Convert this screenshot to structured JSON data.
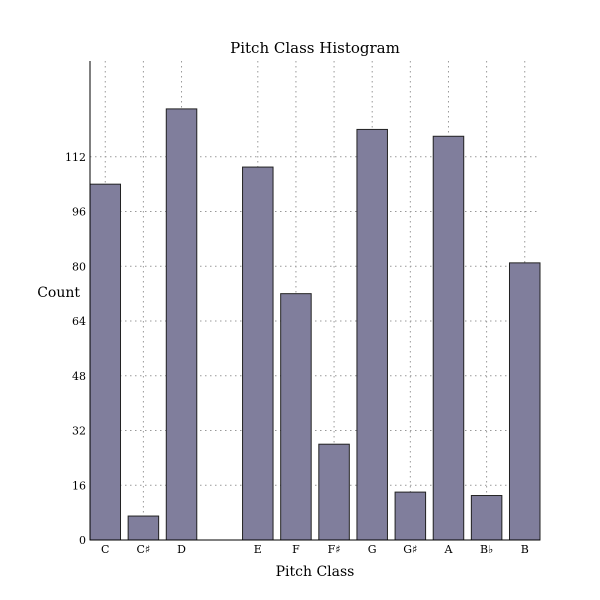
{
  "chart_data": {
    "type": "bar",
    "title": "Pitch Class Histogram",
    "xlabel": "Pitch Class",
    "ylabel": "Count",
    "categories": [
      "C",
      "C♯",
      "D",
      "E",
      "F",
      "F♯",
      "G",
      "G♯",
      "A",
      "B♭",
      "B"
    ],
    "x": [
      0,
      1,
      2,
      4,
      5,
      6,
      7,
      8,
      9,
      10,
      11
    ],
    "values": [
      104,
      7,
      126,
      109,
      72,
      28,
      120,
      14,
      118,
      13,
      81
    ],
    "xlim": [
      -0.4,
      11.4
    ],
    "ylim": [
      0,
      140
    ],
    "yticks": [
      0,
      16,
      32,
      48,
      64,
      80,
      96,
      112
    ],
    "grid": true,
    "bar_color": "#807e9c",
    "bar_edge_color": "#222222"
  }
}
